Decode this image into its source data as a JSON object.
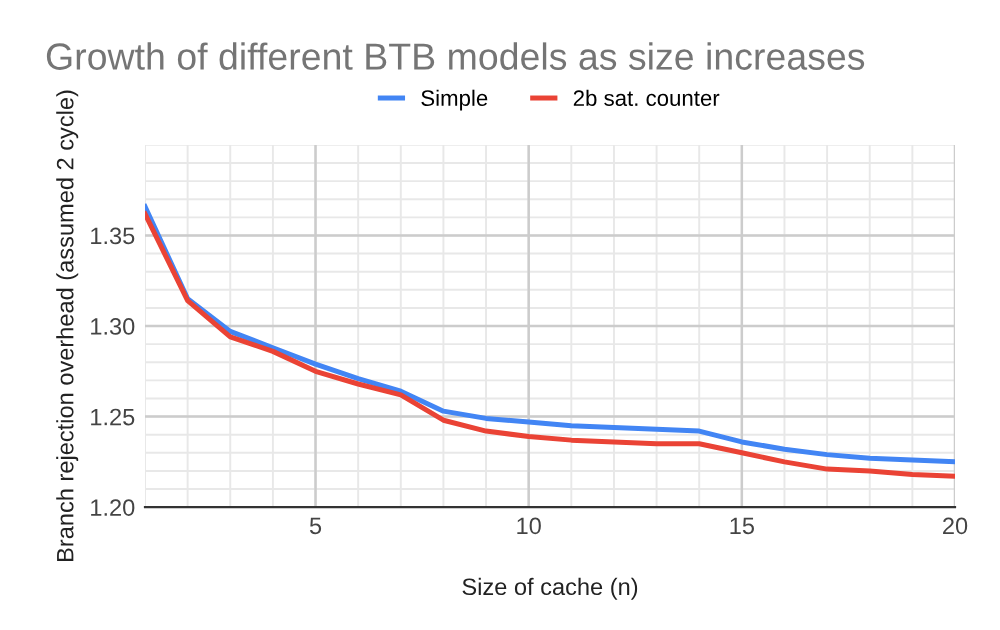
{
  "chart_data": {
    "type": "line",
    "title": "Growth of different BTB models as size increases",
    "xlabel": "Size of cache (n)",
    "ylabel": "Branch rejection overhead (assumed 2 cycle)",
    "x": [
      1,
      2,
      3,
      4,
      5,
      6,
      7,
      8,
      9,
      10,
      11,
      12,
      13,
      14,
      15,
      16,
      17,
      18,
      19,
      20
    ],
    "series": [
      {
        "name": "Simple",
        "color": "#4285f4",
        "values": [
          1.366,
          1.315,
          1.297,
          1.288,
          1.279,
          1.271,
          1.264,
          1.253,
          1.249,
          1.247,
          1.245,
          1.244,
          1.243,
          1.242,
          1.236,
          1.232,
          1.229,
          1.227,
          1.226,
          1.225
        ]
      },
      {
        "name": "2b sat. counter",
        "color": "#ea4335",
        "values": [
          1.362,
          1.314,
          1.294,
          1.286,
          1.275,
          1.268,
          1.262,
          1.248,
          1.242,
          1.239,
          1.237,
          1.236,
          1.235,
          1.235,
          1.23,
          1.225,
          1.221,
          1.22,
          1.218,
          1.217
        ]
      }
    ],
    "xlim": [
      1,
      20
    ],
    "xticks": [
      5,
      10,
      15,
      20
    ],
    "ylim": [
      1.2,
      1.4
    ],
    "yticks": [
      {
        "value": 1.2,
        "label": "1.20"
      },
      {
        "value": 1.25,
        "label": "1.25"
      },
      {
        "value": 1.3,
        "label": "1.30"
      },
      {
        "value": 1.35,
        "label": "1.35"
      }
    ],
    "grid": true,
    "legend": "top",
    "marker": "none",
    "line_style": "solid"
  }
}
